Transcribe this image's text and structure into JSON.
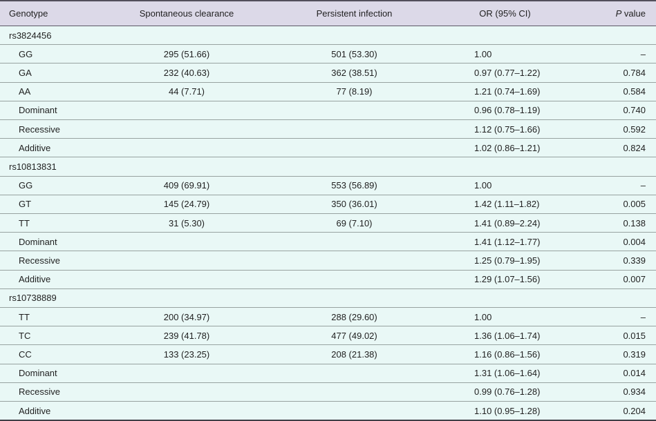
{
  "colors": {
    "header_bg": "#dcd9e8",
    "row_bg": "#e9f8f6",
    "top_border": "#524f5b",
    "header_rule": "#5b5864",
    "row_rule": "#97a2a0",
    "bottom_border": "#3f3e46",
    "text": "#1f1f1f"
  },
  "header": {
    "columns": [
      "Genotype",
      "Spontaneous clearance",
      "Persistent infection",
      "OR (95% CI)"
    ],
    "p_italic": "P",
    "p_rest": "value"
  },
  "table": {
    "sections": [
      {
        "snp": "rs3824456",
        "rows": [
          {
            "genotype": "GG",
            "clearance": "295 (51.66)",
            "infection": "501 (53.30)",
            "or": "1.00",
            "p": "–"
          },
          {
            "genotype": "GA",
            "clearance": "232 (40.63)",
            "infection": "362 (38.51)",
            "or": "0.97 (0.77–1.22)",
            "p": "0.784"
          },
          {
            "genotype": "AA",
            "clearance": "44 (7.71)",
            "infection": "77 (8.19)",
            "or": "1.21 (0.74–1.69)",
            "p": "0.584"
          },
          {
            "genotype": "Dominant",
            "clearance": "",
            "infection": "",
            "or": "0.96 (0.78–1.19)",
            "p": "0.740"
          },
          {
            "genotype": "Recessive",
            "clearance": "",
            "infection": "",
            "or": "1.12 (0.75–1.66)",
            "p": "0.592"
          },
          {
            "genotype": "Additive",
            "clearance": "",
            "infection": "",
            "or": "1.02 (0.86–1.21)",
            "p": "0.824"
          }
        ]
      },
      {
        "snp": "rs10813831",
        "rows": [
          {
            "genotype": "GG",
            "clearance": "409 (69.91)",
            "infection": "553 (56.89)",
            "or": "1.00",
            "p": "–"
          },
          {
            "genotype": "GT",
            "clearance": "145 (24.79)",
            "infection": "350 (36.01)",
            "or": "1.42 (1.11–1.82)",
            "p": "0.005"
          },
          {
            "genotype": "TT",
            "clearance": "31 (5.30)",
            "infection": "69 (7.10)",
            "or": "1.41 (0.89–2.24)",
            "p": "0.138"
          },
          {
            "genotype": "Dominant",
            "clearance": "",
            "infection": "",
            "or": "1.41 (1.12–1.77)",
            "p": "0.004"
          },
          {
            "genotype": "Recessive",
            "clearance": "",
            "infection": "",
            "or": "1.25 (0.79–1.95)",
            "p": "0.339"
          },
          {
            "genotype": "Additive",
            "clearance": "",
            "infection": "",
            "or": "1.29 (1.07–1.56)",
            "p": "0.007"
          }
        ]
      },
      {
        "snp": "rs10738889",
        "rows": [
          {
            "genotype": "TT",
            "clearance": "200 (34.97)",
            "infection": "288 (29.60)",
            "or": "1.00",
            "p": "–"
          },
          {
            "genotype": "TC",
            "clearance": "239 (41.78)",
            "infection": "477 (49.02)",
            "or": "1.36 (1.06–1.74)",
            "p": "0.015"
          },
          {
            "genotype": "CC",
            "clearance": "133 (23.25)",
            "infection": "208 (21.38)",
            "or": "1.16 (0.86–1.56)",
            "p": "0.319"
          },
          {
            "genotype": "Dominant",
            "clearance": "",
            "infection": "",
            "or": "1.31 (1.06–1.64)",
            "p": "0.014"
          },
          {
            "genotype": "Recessive",
            "clearance": "",
            "infection": "",
            "or": "0.99 (0.76–1.28)",
            "p": "0.934"
          },
          {
            "genotype": "Additive",
            "clearance": "",
            "infection": "",
            "or": "1.10 (0.95–1.28)",
            "p": "0.204"
          }
        ]
      }
    ]
  }
}
